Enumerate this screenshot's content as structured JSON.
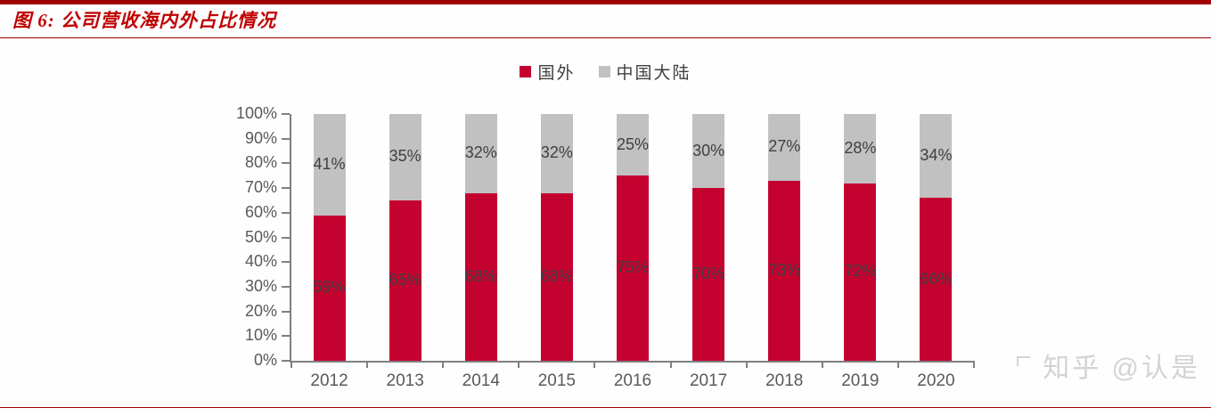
{
  "header": {
    "title": "图 6: 公司营收海内外占比情况"
  },
  "watermark": {
    "text": "知乎 @认是"
  },
  "chart_data": {
    "type": "bar",
    "stacked": true,
    "title": "图 6: 公司营收海内外占比情况",
    "categories": [
      "2012",
      "2013",
      "2014",
      "2015",
      "2016",
      "2017",
      "2018",
      "2019",
      "2020"
    ],
    "series": [
      {
        "name": "国外",
        "color": "#C40230",
        "values": [
          59,
          65,
          68,
          68,
          75,
          70,
          73,
          72,
          66
        ]
      },
      {
        "name": "中国大陆",
        "color": "#C1C1C1",
        "values": [
          41,
          35,
          32,
          32,
          25,
          30,
          27,
          28,
          34
        ]
      }
    ],
    "value_suffix": "%",
    "ylim": [
      0,
      100
    ],
    "ytick_values": [
      0,
      10,
      20,
      30,
      40,
      50,
      60,
      70,
      80,
      90,
      100
    ],
    "ytick_labels": [
      "0%",
      "10%",
      "20%",
      "30%",
      "40%",
      "50%",
      "60%",
      "70%",
      "80%",
      "90%",
      "100%"
    ],
    "xlabel": "",
    "ylabel": "",
    "grid": false,
    "legend_position": "top-center",
    "value_labels": "inside-center"
  },
  "colors": {
    "series_overseas": "#C40230",
    "series_mainland": "#C1C1C1",
    "title_red": "#C00000",
    "rule_red": "#A00000",
    "axis_gray": "#808080",
    "tick_label_gray": "#595959",
    "data_label_gray": "#3F3F3F",
    "watermark_gray": "#D3D3D3"
  }
}
